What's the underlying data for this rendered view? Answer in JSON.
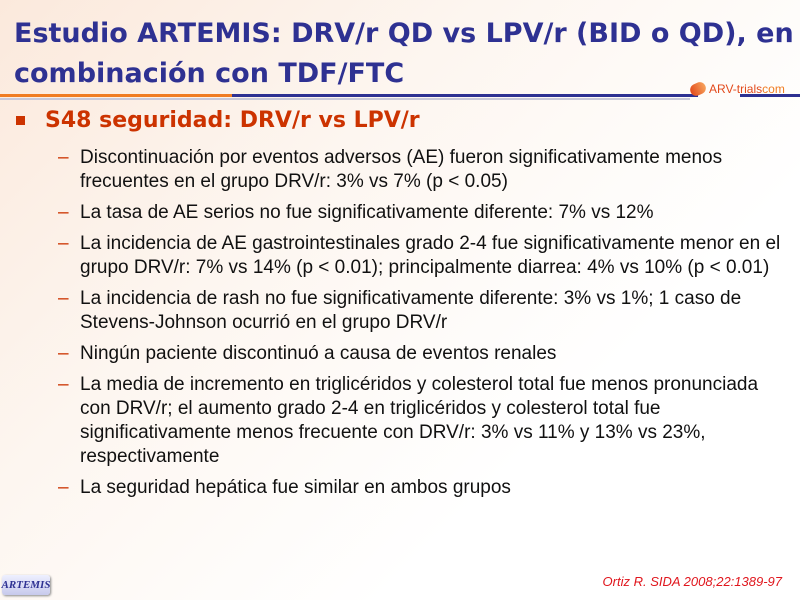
{
  "title": "Estudio ARTEMIS: DRV/r QD vs LPV/r (BID o QD), en combinación con TDF/FTC",
  "logo": {
    "main": "ARV-trials",
    "suffix": "com"
  },
  "heading": "S48 seguridad: DRV/r vs LPV/r",
  "bullets": [
    "Discontinuación por eventos adversos (AE) fueron significativamente menos frecuentes en el grupo DRV/r: 3% vs 7% (p < 0.05)",
    "La tasa de AE serios no fue significativamente diferente: 7% vs 12%",
    "La incidencia de AE gastrointestinales grado 2-4 fue significativamente menor en el grupo DRV/r: 7% vs 14% (p < 0.01); principalmente diarrea: 4% vs 10% (p < 0.01)",
    "La incidencia de rash no fue significativamente diferente: 3% vs 1%; 1 caso de Stevens-Johnson ocurrió en el grupo DRV/r",
    "Ningún paciente discontinuó a causa de eventos renales",
    "La media de incremento en triglicéridos y colesterol total fue menos pronunciada con DRV/r; el aumento grado 2-4 en triglicéridos y colesterol total fue significativamente menos frecuente con DRV/r: 3% vs 11% y 13% vs 23%, respectivamente",
    "La seguridad hepática fue similar en ambos grupos"
  ],
  "dash": "–",
  "badge": "ARTEMIS",
  "citation": "Ortiz R. SIDA 2008;22:1389-97"
}
